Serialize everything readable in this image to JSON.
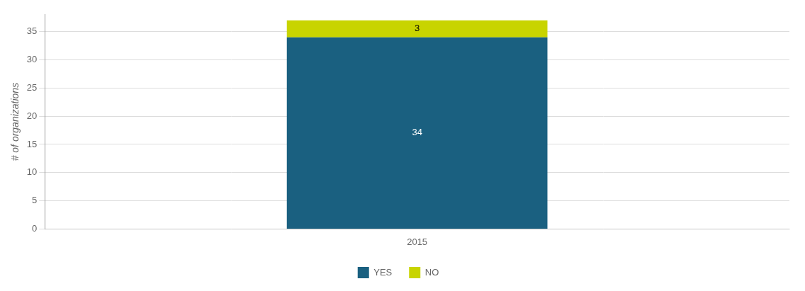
{
  "chart_data": {
    "type": "bar",
    "stacked": true,
    "categories": [
      "2015"
    ],
    "series": [
      {
        "name": "YES",
        "color": "#1a6080",
        "values": [
          34
        ]
      },
      {
        "name": "NO",
        "color": "#c8d400",
        "values": [
          3
        ]
      }
    ],
    "ylabel": "# of organizations",
    "ylim": [
      0,
      38
    ],
    "yticks": [
      0,
      5,
      10,
      15,
      20,
      25,
      30,
      35
    ],
    "grid": true,
    "legend": "bottom",
    "data_labels": true
  }
}
